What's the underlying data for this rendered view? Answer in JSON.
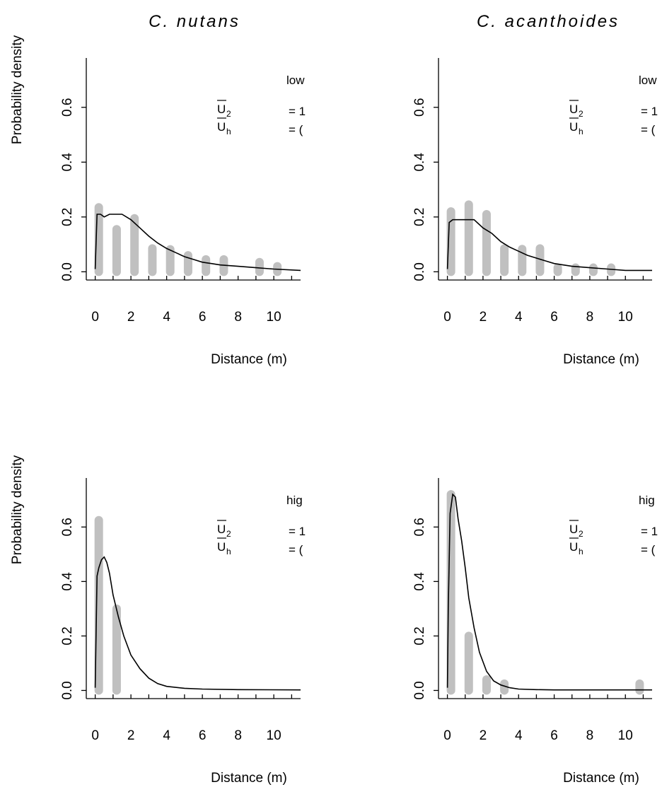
{
  "columns": [
    {
      "title": "C. nutans"
    },
    {
      "title": "C. acanthoides"
    }
  ],
  "chart_data": [
    {
      "type": "bar",
      "panel": "top-left",
      "column_title": "C. nutans",
      "legend": {
        "regime": "low",
        "line1_sym": "U",
        "line1_sub": "2",
        "line1_eq": "= 1",
        "line2_sym": "U",
        "line2_sub": "h",
        "line2_eq": "= (",
        "placement": "top-right"
      },
      "xlabel": "Distance (m)",
      "ylabel": "Probability density",
      "xlim": [
        -0.5,
        11.5
      ],
      "ylim": [
        -0.03,
        0.78
      ],
      "xticks": [
        "0",
        "2",
        "4",
        "6",
        "8",
        "10"
      ],
      "yticks": [
        "0.0",
        "0.2",
        "0.4",
        "0.6"
      ],
      "bars": {
        "x": [
          0.2,
          1.2,
          2.2,
          3.2,
          4.2,
          5.2,
          6.2,
          7.2,
          9.2,
          10.2
        ],
        "values": [
          0.235,
          0.155,
          0.195,
          0.085,
          0.082,
          0.06,
          0.045,
          0.045,
          0.035,
          0.02
        ]
      },
      "curve": {
        "x": [
          0.0,
          0.1,
          0.3,
          0.5,
          0.8,
          1.0,
          1.5,
          2.0,
          2.5,
          3.0,
          3.5,
          4.0,
          4.5,
          5.0,
          5.5,
          6.0,
          6.5,
          7.0,
          8.0,
          9.0,
          10.0,
          11.5
        ],
        "values": [
          0.01,
          0.21,
          0.21,
          0.2,
          0.21,
          0.21,
          0.21,
          0.19,
          0.16,
          0.13,
          0.105,
          0.085,
          0.07,
          0.055,
          0.045,
          0.035,
          0.03,
          0.025,
          0.02,
          0.015,
          0.01,
          0.005
        ]
      },
      "colors": {
        "bars": "#c0c0c0",
        "curve": "#000000"
      }
    },
    {
      "type": "bar",
      "panel": "top-right",
      "column_title": "C. acanthoides",
      "legend": {
        "regime": "low",
        "line1_sym": "U",
        "line1_sub": "2",
        "line1_eq": "= 1",
        "line2_sym": "U",
        "line2_sub": "h",
        "line2_eq": "= (",
        "placement": "top-right"
      },
      "xlabel": "Distance (m)",
      "ylabel": "",
      "xlim": [
        -0.5,
        11.5
      ],
      "ylim": [
        -0.03,
        0.78
      ],
      "xticks": [
        "0",
        "2",
        "4",
        "6",
        "8",
        "10"
      ],
      "yticks": [
        "0.0",
        "0.2",
        "0.4",
        "0.6"
      ],
      "bars": {
        "x": [
          0.2,
          1.2,
          2.2,
          3.2,
          4.2,
          5.2,
          6.2,
          7.2,
          8.2,
          9.2
        ],
        "values": [
          0.22,
          0.245,
          0.21,
          0.085,
          0.083,
          0.085,
          0.015,
          0.015,
          0.015,
          0.015
        ]
      },
      "curve": {
        "x": [
          0.0,
          0.1,
          0.3,
          0.6,
          1.0,
          1.5,
          2.0,
          2.5,
          3.0,
          3.5,
          4.0,
          4.5,
          5.0,
          5.5,
          6.0,
          7.0,
          8.0,
          9.0,
          10.0,
          11.5
        ],
        "values": [
          0.01,
          0.18,
          0.19,
          0.19,
          0.19,
          0.19,
          0.16,
          0.14,
          0.11,
          0.09,
          0.075,
          0.06,
          0.05,
          0.04,
          0.03,
          0.02,
          0.015,
          0.01,
          0.005,
          0.005
        ]
      },
      "colors": {
        "bars": "#c0c0c0",
        "curve": "#000000"
      }
    },
    {
      "type": "bar",
      "panel": "bottom-left",
      "column_title": "",
      "legend": {
        "regime": "hig",
        "line1_sym": "U",
        "line1_sub": "2",
        "line1_eq": "= 1",
        "line2_sym": "U",
        "line2_sub": "h",
        "line2_eq": "= (",
        "placement": "top-right"
      },
      "xlabel": "Distance (m)",
      "ylabel": "Probability density",
      "xlim": [
        -0.5,
        11.5
      ],
      "ylim": [
        -0.03,
        0.78
      ],
      "xticks": [
        "0",
        "2",
        "4",
        "6",
        "8",
        "10"
      ],
      "yticks": [
        "0.0",
        "0.2",
        "0.4",
        "0.6"
      ],
      "bars": {
        "x": [
          0.2,
          1.2
        ],
        "values": [
          0.625,
          0.3
        ]
      },
      "curve": {
        "x": [
          0.0,
          0.1,
          0.2,
          0.35,
          0.5,
          0.65,
          0.8,
          1.0,
          1.3,
          1.6,
          2.0,
          2.5,
          3.0,
          3.5,
          4.0,
          5.0,
          6.0,
          8.0,
          11.5
        ],
        "values": [
          0.01,
          0.42,
          0.45,
          0.48,
          0.49,
          0.47,
          0.43,
          0.35,
          0.27,
          0.2,
          0.13,
          0.08,
          0.045,
          0.025,
          0.015,
          0.008,
          0.005,
          0.003,
          0.002
        ]
      },
      "colors": {
        "bars": "#c0c0c0",
        "curve": "#000000"
      }
    },
    {
      "type": "bar",
      "panel": "bottom-right",
      "column_title": "",
      "legend": {
        "regime": "hig",
        "line1_sym": "U",
        "line1_sub": "2",
        "line1_eq": "= 1",
        "line2_sym": "U",
        "line2_sub": "h",
        "line2_eq": "= (",
        "placement": "top-right"
      },
      "xlabel": "Distance (m)",
      "ylabel": "",
      "xlim": [
        -0.5,
        11.5
      ],
      "ylim": [
        -0.03,
        0.78
      ],
      "xticks": [
        "0",
        "2",
        "4",
        "6",
        "8",
        "10"
      ],
      "yticks": [
        "0.0",
        "0.2",
        "0.4",
        "0.6"
      ],
      "bars": {
        "x": [
          0.2,
          1.2,
          2.2,
          3.2,
          10.8
        ],
        "values": [
          0.72,
          0.2,
          0.04,
          0.025,
          0.025
        ]
      },
      "curve": {
        "x": [
          0.0,
          0.05,
          0.15,
          0.3,
          0.45,
          0.6,
          0.8,
          1.0,
          1.2,
          1.5,
          1.8,
          2.2,
          2.6,
          3.0,
          3.5,
          4.0,
          5.0,
          6.0,
          8.0,
          11.5
        ],
        "values": [
          0.01,
          0.3,
          0.65,
          0.72,
          0.71,
          0.63,
          0.55,
          0.45,
          0.34,
          0.23,
          0.14,
          0.07,
          0.035,
          0.02,
          0.01,
          0.005,
          0.003,
          0.002,
          0.002,
          0.002
        ]
      },
      "colors": {
        "bars": "#c0c0c0",
        "curve": "#000000"
      }
    }
  ]
}
